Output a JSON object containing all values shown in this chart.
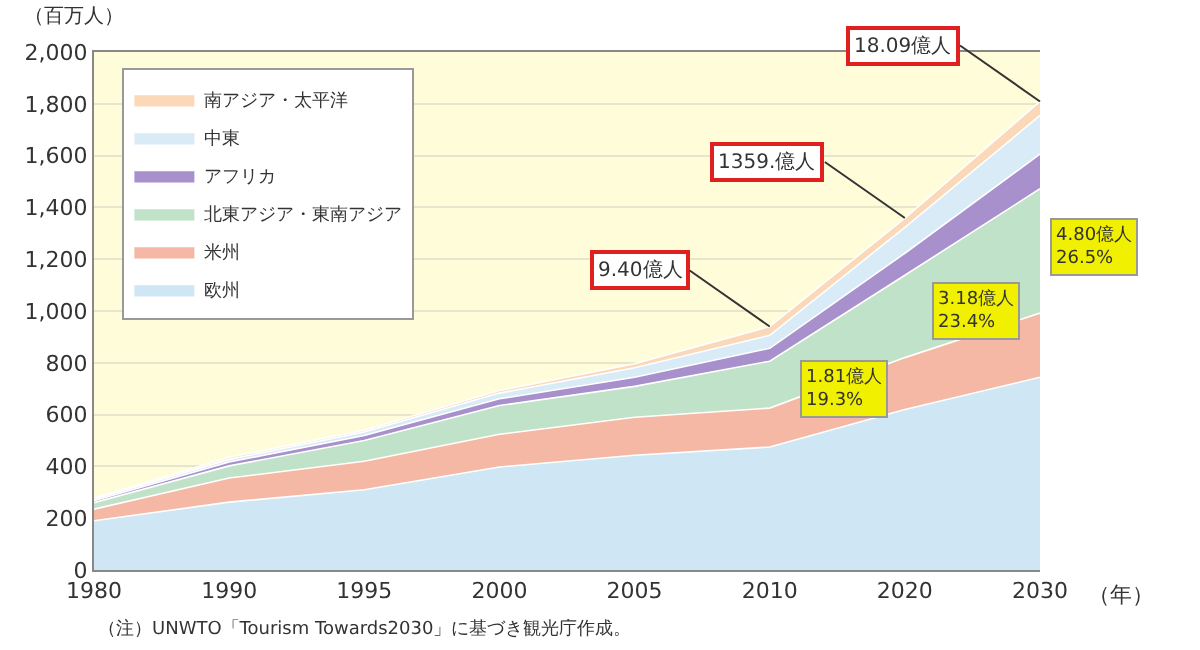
{
  "chart_data": {
    "type": "area",
    "stacked": true,
    "ylabel": "（百万人）",
    "xlabel": "（年）",
    "categories": [
      "1980",
      "1990",
      "1995",
      "2000",
      "2005",
      "2010",
      "2020",
      "2030"
    ],
    "series": [
      {
        "name": "欧州",
        "color": "#cfe6f5",
        "values": [
          190,
          262,
          310,
          398,
          443,
          475,
          620,
          744
        ]
      },
      {
        "name": "米州",
        "color": "#f4b8a4",
        "values": [
          45,
          93,
          110,
          126,
          147,
          150,
          200,
          248
        ]
      },
      {
        "name": "北東アジア・東南アジア",
        "color": "#bfe2c8",
        "values": [
          25,
          47,
          80,
          111,
          119,
          181,
          318,
          480
        ]
      },
      {
        "name": "アフリカ",
        "color": "#a890cc",
        "values": [
          7,
          15,
          19,
          26,
          35,
          50,
          85,
          134
        ]
      },
      {
        "name": "中東",
        "color": "#d8ebf7",
        "values": [
          7,
          10,
          14,
          22,
          37,
          50,
          100,
          149
        ]
      },
      {
        "name": "南アジア・太平洋",
        "color": "#fbd8b8",
        "values": [
          4,
          8,
          7,
          10,
          15,
          34,
          36,
          54
        ]
      }
    ],
    "ylim": [
      0,
      2000
    ],
    "yticks": [
      {
        "value": 0,
        "label": "0"
      },
      {
        "value": 200,
        "label": "200"
      },
      {
        "value": 400,
        "label": "400"
      },
      {
        "value": 600,
        "label": "600"
      },
      {
        "value": 800,
        "label": "800"
      },
      {
        "value": 1000,
        "label": "1,000"
      },
      {
        "value": 1200,
        "label": "1,200"
      },
      {
        "value": 1400,
        "label": "1,400"
      },
      {
        "value": 1600,
        "label": "1,600"
      },
      {
        "value": 1800,
        "label": "1,800"
      },
      {
        "value": 2000,
        "label": "2,000"
      }
    ],
    "grid": "y",
    "legend": "top left",
    "annotations": [
      {
        "text": "9.40億人",
        "x": "2010",
        "y": 940
      },
      {
        "text": "1359.億人",
        "x": "2020",
        "y": 1359
      },
      {
        "text": "18.09億人",
        "x": "2030",
        "y": 1809
      },
      "1.81億人\n19.3%",
      "3.18億人\n23.4%",
      "4.80億人\n26.5%",
      "（注）UNWTO「Tourism Towards2030」に基づき観光庁作成。"
    ]
  }
}
